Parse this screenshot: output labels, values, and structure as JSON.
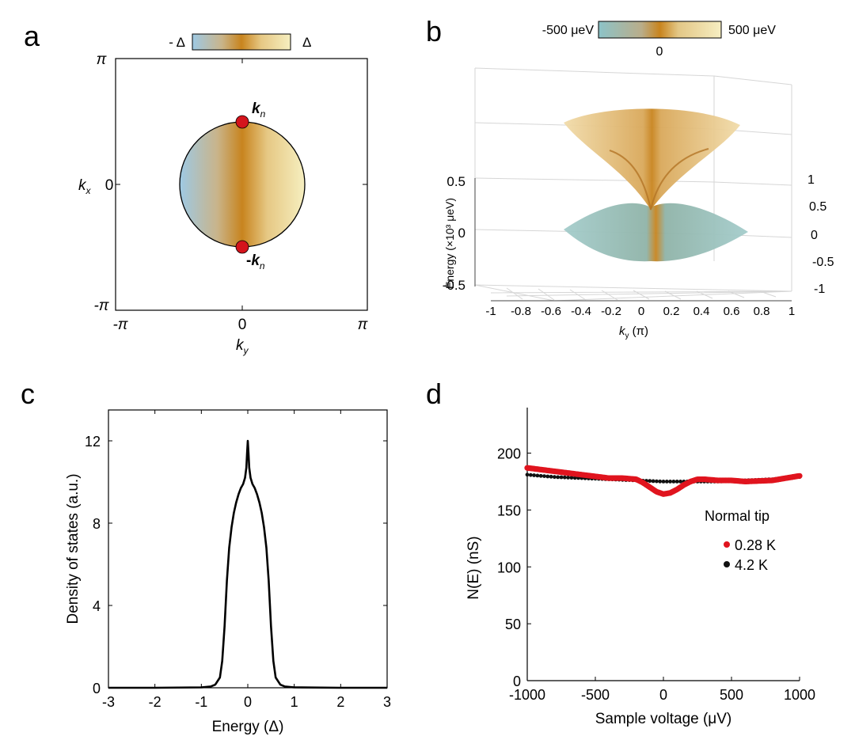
{
  "panels": {
    "a": {
      "letter": "a",
      "colorbar": {
        "left_label": "- Δ",
        "right_label": "Δ"
      },
      "x_ticks": [
        "-π",
        "0",
        "π"
      ],
      "y_ticks": [
        "π",
        "0",
        "-π"
      ],
      "xlabel_main": "k",
      "xlabel_sub": "y",
      "ylabel_main": "k",
      "ylabel_sub": "x",
      "node_top": {
        "main": "k",
        "sub": "n"
      },
      "node_bottom": {
        "prefix": "-",
        "main": "k",
        "sub": "n"
      },
      "colors": {
        "left": "#9ec9e4",
        "center": "#c8841e",
        "right": "#f6efc0",
        "node": "#d4141c"
      }
    },
    "b": {
      "letter": "b",
      "colorbar": {
        "left_label": "-500 μeV",
        "right_label": "500 μeV",
        "center_label": "0"
      },
      "zlabel": "Energy (×10³ μeV)",
      "z_ticks": [
        "0.5",
        "0",
        "-0.5"
      ],
      "x_ticks": [
        "-1",
        "-0.8",
        "-0.6",
        "-0.4",
        "-0.2",
        "0",
        "0.2",
        "0.4",
        "0.6",
        "0.8",
        "1"
      ],
      "xlabel_main": "k",
      "xlabel_sub": "y",
      "xlabel_unit": " (π)",
      "kx_ticks": [
        "1",
        "0.5",
        "0",
        "-0.5",
        "-1"
      ],
      "colors": {
        "upper": "#edd49a",
        "lower": "#8fc2c4",
        "cone": "#c8841e"
      }
    },
    "c": {
      "letter": "c"
    },
    "d": {
      "letter": "d"
    }
  },
  "chart_data": [
    {
      "panel": "c",
      "type": "line",
      "xlabel": "Energy (Δ)",
      "ylabel": "Density of states (a.u.)",
      "xlim": [
        -3,
        3
      ],
      "ylim": [
        0,
        13.5
      ],
      "x_ticks": [
        -3,
        -2,
        -1,
        0,
        1,
        2,
        3
      ],
      "y_ticks": [
        0,
        4,
        8,
        12
      ],
      "series": [
        {
          "x": [
            -3,
            -2,
            -1,
            -0.8,
            -0.7,
            -0.6,
            -0.55,
            -0.5,
            -0.45,
            -0.4,
            -0.35,
            -0.3,
            -0.25,
            -0.2,
            -0.15,
            -0.1,
            -0.06,
            -0.03,
            -0.015,
            0,
            0.015,
            0.03,
            0.06,
            0.1,
            0.15,
            0.2,
            0.25,
            0.3,
            0.35,
            0.4,
            0.45,
            0.5,
            0.55,
            0.6,
            0.7,
            0.8,
            1,
            2,
            3
          ],
          "y": [
            0,
            0,
            0.02,
            0.06,
            0.15,
            0.5,
            1.3,
            3.0,
            5.2,
            6.8,
            7.8,
            8.5,
            9.0,
            9.4,
            9.7,
            9.9,
            10.2,
            10.7,
            11.4,
            12.0,
            11.4,
            10.7,
            10.2,
            9.9,
            9.7,
            9.4,
            9.0,
            8.5,
            7.8,
            6.8,
            5.2,
            3.0,
            1.3,
            0.5,
            0.15,
            0.06,
            0.02,
            0,
            0
          ],
          "color": "#000000"
        }
      ]
    },
    {
      "panel": "d",
      "type": "scatter",
      "xlabel": "Sample voltage (μV)",
      "ylabel": "N(E) (nS)",
      "xlim": [
        -1000,
        1000
      ],
      "ylim": [
        0,
        240
      ],
      "x_ticks": [
        -1000,
        -500,
        0,
        500,
        1000
      ],
      "y_ticks": [
        0,
        50,
        100,
        150,
        200
      ],
      "legend_title": "Normal tip",
      "legend_position": "right",
      "series": [
        {
          "name": "0.28 K",
          "color": "#e0141e",
          "x": [
            -1000,
            -800,
            -600,
            -400,
            -300,
            -200,
            -150,
            -100,
            -50,
            0,
            50,
            100,
            150,
            200,
            250,
            300,
            400,
            500,
            600,
            800,
            1000
          ],
          "y": [
            187,
            184,
            181,
            178,
            178,
            177,
            174,
            170,
            166,
            164,
            165,
            168,
            172,
            175,
            177,
            177,
            176,
            176,
            175,
            176,
            180
          ]
        },
        {
          "name": "4.2 K",
          "color": "#111111",
          "x": [
            -1000,
            -800,
            -600,
            -400,
            -200,
            0,
            200,
            400,
            600,
            800,
            1000
          ],
          "y": [
            181,
            179,
            178,
            177,
            176,
            175,
            175,
            175,
            176,
            177,
            179
          ]
        }
      ]
    }
  ]
}
